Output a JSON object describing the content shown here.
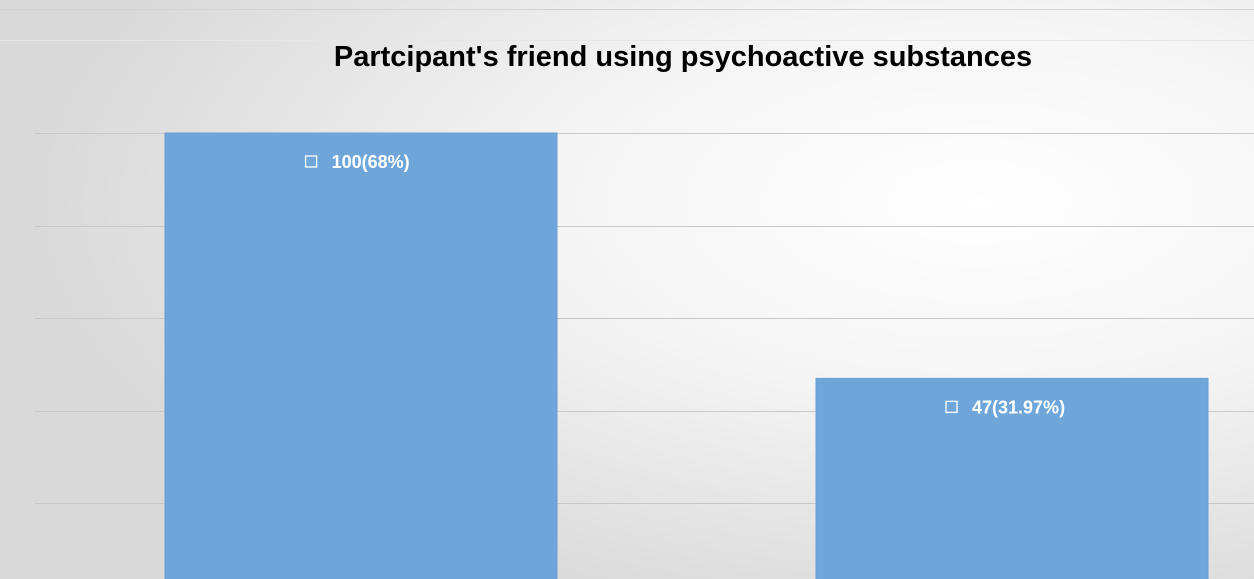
{
  "chart_data": {
    "type": "bar",
    "title": "Partcipant's friend using psychoactive substances",
    "categories": [
      "",
      ""
    ],
    "values": [
      100,
      47
    ],
    "data_labels": [
      "100(68%)",
      "47(31.97%)"
    ],
    "ylim": [
      0,
      100
    ],
    "grid": true,
    "legend": "none",
    "colors": {
      "bar": "#6fa6da",
      "bar_edge": "#6a9fd2",
      "label_text": "#ffffff",
      "title_text": "#000000",
      "gridline": "#c8c8c8"
    }
  }
}
